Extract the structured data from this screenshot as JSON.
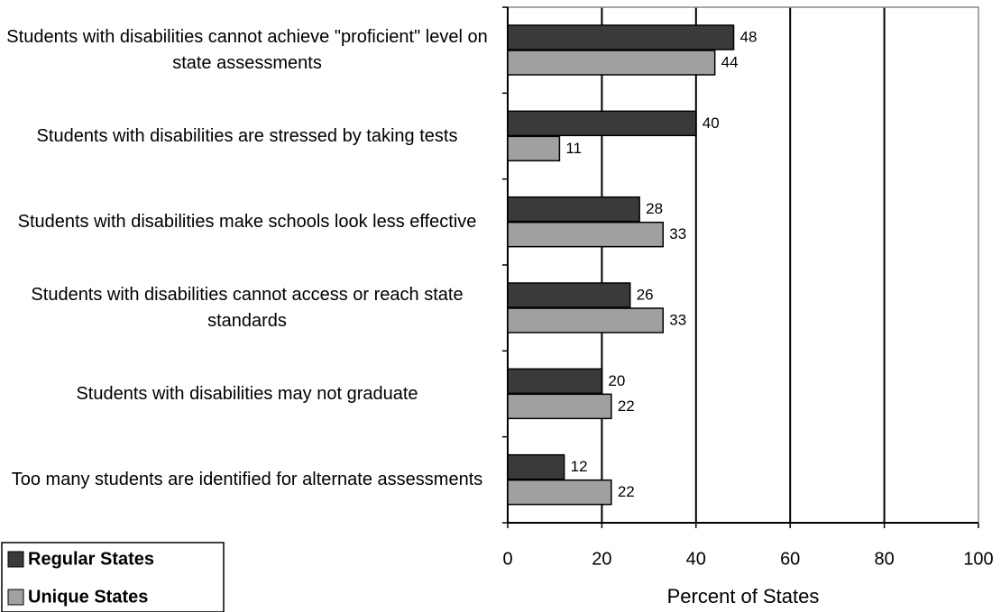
{
  "chart_data": {
    "type": "bar",
    "orientation": "horizontal",
    "categories": [
      "Students with disabilities cannot achieve \"proficient\" level on state assessments",
      "Students with disabilities are stressed by taking tests",
      "Students with disabilities make schools look less effective",
      "Students with disabilities cannot access or reach state standards",
      "Students with disabilities may not graduate",
      "Too many students are identified for alternate assessments"
    ],
    "series": [
      {
        "name": "Regular States",
        "color": "#3a3a3a",
        "values": [
          48,
          40,
          28,
          26,
          20,
          12
        ]
      },
      {
        "name": "Unique States",
        "color": "#a0a0a0",
        "values": [
          44,
          11,
          33,
          33,
          22,
          22
        ]
      }
    ],
    "x_label": "Percent of States",
    "xlim": [
      0,
      100
    ],
    "xticks": [
      0,
      20,
      40,
      60,
      80,
      100
    ],
    "grid": true,
    "legend": "bottom-left"
  }
}
